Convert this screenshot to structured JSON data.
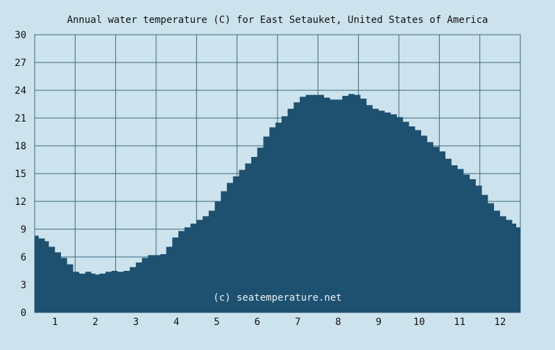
{
  "chart_data": {
    "type": "area",
    "title": "Annual water temperature (C) for East Setauket, United States of America",
    "xlabel": "",
    "ylabel": "",
    "ylim": [
      0,
      30
    ],
    "xlim": [
      0.5,
      12.5
    ],
    "yticks": [
      0,
      3,
      6,
      9,
      12,
      15,
      18,
      21,
      24,
      27,
      30
    ],
    "xticks": [
      1,
      2,
      3,
      4,
      5,
      6,
      7,
      8,
      9,
      10,
      11,
      12
    ],
    "grid": true,
    "watermark": "(c) seatemperature.net",
    "colors": {
      "background": "#cce3ee",
      "fill": "#1e5170",
      "grid": "#3d6378"
    },
    "series": [
      {
        "x": [
          0.5,
          0.6,
          0.75,
          0.85,
          1.0,
          1.15,
          1.3,
          1.45,
          1.6,
          1.75,
          1.9,
          2.0,
          2.1,
          2.25,
          2.4,
          2.55,
          2.7,
          2.85,
          3.0,
          3.15,
          3.3,
          3.45,
          3.6,
          3.75,
          3.9,
          4.05,
          4.2,
          4.35,
          4.5,
          4.65,
          4.8,
          4.95,
          5.1,
          5.25,
          5.4,
          5.55,
          5.7,
          5.85,
          6.0,
          6.15,
          6.3,
          6.45,
          6.6,
          6.75,
          6.9,
          7.05,
          7.2,
          7.35,
          7.5,
          7.65,
          7.8,
          7.95,
          8.1,
          8.25,
          8.4,
          8.55,
          8.7,
          8.85,
          9.0,
          9.15,
          9.3,
          9.45,
          9.6,
          9.75,
          9.9,
          10.05,
          10.2,
          10.35,
          10.5,
          10.65,
          10.8,
          10.95,
          11.1,
          11.25,
          11.4,
          11.55,
          11.7,
          11.85,
          12.0,
          12.15,
          12.3,
          12.4,
          12.5
        ],
        "values": [
          8.3,
          8.0,
          7.7,
          7.1,
          6.5,
          5.9,
          5.2,
          4.4,
          4.2,
          4.4,
          4.2,
          4.1,
          4.2,
          4.4,
          4.5,
          4.4,
          4.5,
          4.9,
          5.4,
          5.9,
          6.2,
          6.2,
          6.3,
          7.1,
          8.1,
          8.8,
          9.2,
          9.6,
          10.0,
          10.4,
          11.0,
          12.0,
          13.1,
          14.0,
          14.7,
          15.4,
          16.1,
          16.8,
          17.8,
          19.0,
          20.0,
          20.5,
          21.2,
          22.0,
          22.7,
          23.3,
          23.5,
          23.5,
          23.5,
          23.2,
          23.0,
          23.0,
          23.4,
          23.6,
          23.5,
          23.1,
          22.4,
          22.0,
          21.8,
          21.6,
          21.4,
          21.1,
          20.6,
          20.1,
          19.7,
          19.1,
          18.4,
          17.9,
          17.4,
          16.6,
          15.9,
          15.5,
          14.9,
          14.4,
          13.7,
          12.7,
          11.8,
          11.0,
          10.4,
          10.0,
          9.6,
          9.2,
          8.5
        ]
      }
    ]
  }
}
